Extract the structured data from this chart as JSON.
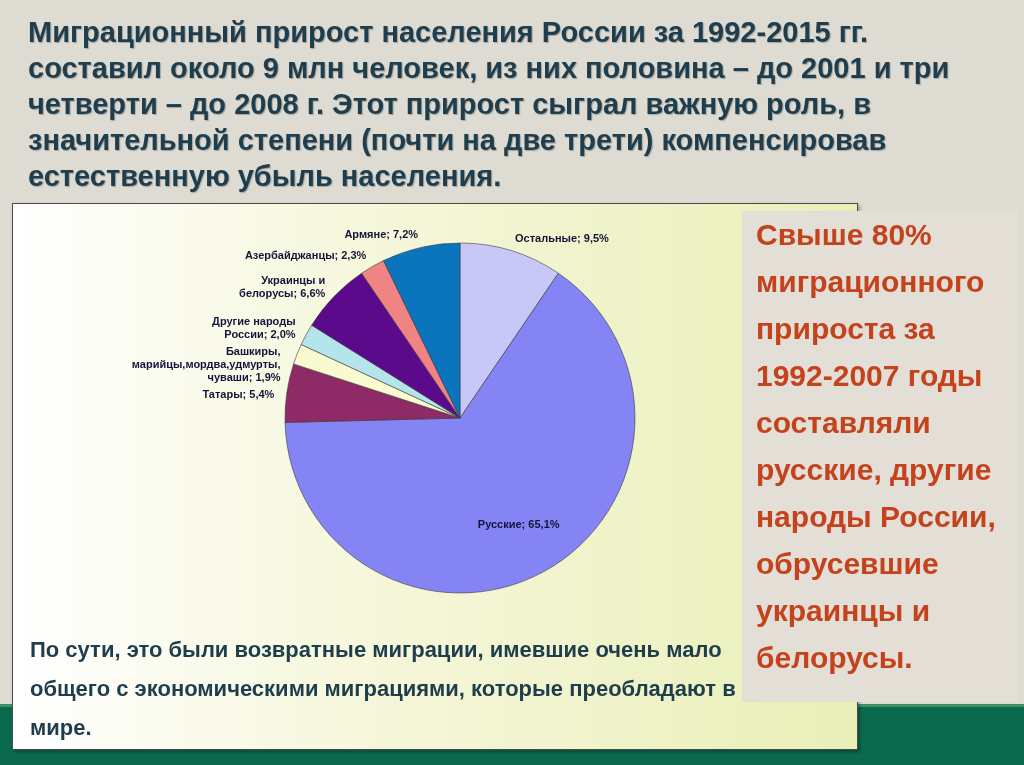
{
  "chart_data": {
    "type": "pie",
    "title": "Миграционный прирост населения России за 1992-2015 гг. составил около 9 млн человек, из них половина – до 2001 и три четверти – до 2008 г. Этот прирост сыграл важную роль, в значительной степени (почти на две трети) компенсировав естественную убыль населения.",
    "categories": [
      "Остальные",
      "Русские",
      "Татары",
      "Башкиры, марийцы,мордва,удмурты, чуваши",
      "Другие народы России",
      "Украинцы и белорусы",
      "Азербайджанцы",
      "Армяне"
    ],
    "values": [
      9.5,
      65.1,
      5.4,
      1.9,
      2.0,
      6.6,
      2.3,
      7.2
    ],
    "value_labels": [
      "9,5%",
      "65,1%",
      "5,4%",
      "1,9%",
      "2,0%",
      "6,6%",
      "2,3%",
      "7,2%"
    ],
    "colors": [
      "#c8c8f8",
      "#8484f4",
      "#8e2a66",
      "#fafad0",
      "#b4e4ec",
      "#5c0a8c",
      "#f08484",
      "#0a74bc"
    ],
    "annotations": [
      "Свыше 80% миграционного прироста за 1992-2007 годы составляли русские, другие народы России, обрусевшие украинцы и белорусы.",
      "По сути, это были возвратные миграции, имевшие очень мало общего с экономическими миграциями, которые преобладают в мире."
    ]
  }
}
